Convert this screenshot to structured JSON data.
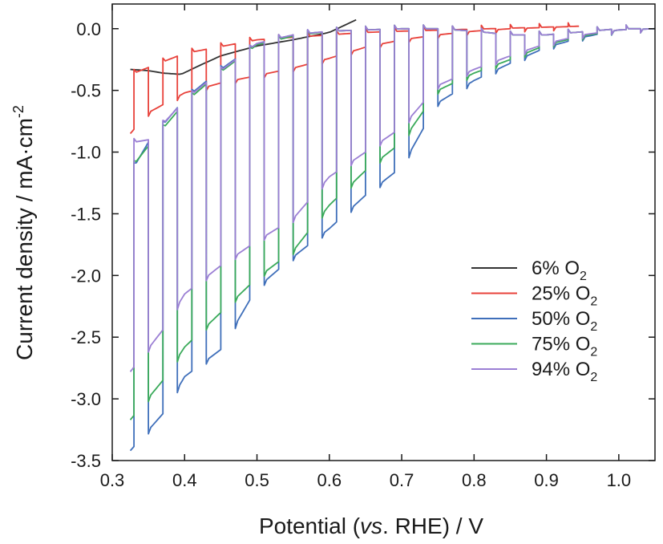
{
  "chart_data": {
    "type": "line",
    "xlabel_parts": [
      "Potential (",
      "vs",
      ". RHE) / V"
    ],
    "ylabel_main": "Current density / mA·cm",
    "ylabel_sup": "-2",
    "xlim": [
      0.3,
      1.05
    ],
    "ylim": [
      -3.5,
      0.2
    ],
    "x_ticks": [
      0.3,
      0.4,
      0.5,
      0.6,
      0.7,
      0.8,
      0.9,
      1.0
    ],
    "x_tick_labels": [
      "0.3",
      "0.4",
      "0.5",
      "0.6",
      "0.7",
      "0.8",
      "0.9",
      "1.0"
    ],
    "y_ticks": [
      0.0,
      -0.5,
      -1.0,
      -1.5,
      -2.0,
      -2.5,
      -3.0,
      -3.5
    ],
    "y_tick_labels": [
      "0.0",
      "-0.5",
      "-1.0",
      "-1.5",
      "-2.0",
      "-2.5",
      "-3.0",
      "-3.5"
    ],
    "grid": false,
    "legend_position": "bottom-right",
    "chopped": {
      "start": 0.33,
      "period": 0.04,
      "on_fraction": 0.5,
      "end": 1.05
    },
    "series": [
      {
        "name": "6% O2",
        "label": "6%",
        "label_suffix": "O",
        "label_sub": "2",
        "color": "#333333",
        "x_range": [
          0.325,
          0.64
        ],
        "smooth": [
          [
            0.325,
            -0.33
          ],
          [
            0.35,
            -0.34
          ],
          [
            0.37,
            -0.36
          ],
          [
            0.395,
            -0.37
          ],
          [
            0.42,
            -0.3
          ],
          [
            0.45,
            -0.22
          ],
          [
            0.5,
            -0.14
          ],
          [
            0.55,
            -0.09
          ],
          [
            0.6,
            -0.03
          ],
          [
            0.64,
            0.08
          ]
        ]
      },
      {
        "name": "25% O2",
        "label": "25%",
        "label_suffix": "O",
        "label_sub": "2",
        "color": "#e8413a",
        "x_range": [
          0.325,
          0.945
        ],
        "dark": [
          [
            0.325,
            -0.85
          ],
          [
            0.35,
            -0.68
          ],
          [
            0.4,
            -0.52
          ],
          [
            0.45,
            -0.44
          ],
          [
            0.5,
            -0.38
          ],
          [
            0.55,
            -0.32
          ],
          [
            0.6,
            -0.24
          ],
          [
            0.65,
            -0.15
          ],
          [
            0.7,
            -0.09
          ],
          [
            0.75,
            -0.05
          ],
          [
            0.8,
            -0.02
          ],
          [
            0.85,
            0.0
          ],
          [
            0.945,
            0.02
          ]
        ],
        "light": [
          [
            0.33,
            -0.36
          ],
          [
            0.4,
            -0.2
          ],
          [
            0.5,
            -0.09
          ],
          [
            0.6,
            -0.05
          ],
          [
            0.65,
            -0.03
          ],
          [
            0.7,
            -0.02
          ],
          [
            0.945,
            0.02
          ]
        ]
      },
      {
        "name": "50% O2",
        "label": "50%",
        "label_suffix": "O",
        "label_sub": "2",
        "color": "#3f6fba",
        "x_range": [
          0.325,
          1.05
        ],
        "dark": [
          [
            0.325,
            -3.42
          ],
          [
            0.37,
            -3.12
          ],
          [
            0.4,
            -2.82
          ],
          [
            0.45,
            -2.6
          ],
          [
            0.5,
            -2.1
          ],
          [
            0.55,
            -1.85
          ],
          [
            0.6,
            -1.62
          ],
          [
            0.65,
            -1.35
          ],
          [
            0.7,
            -1.12
          ],
          [
            0.75,
            -0.6
          ],
          [
            0.8,
            -0.42
          ],
          [
            0.85,
            -0.28
          ],
          [
            0.9,
            -0.15
          ],
          [
            0.95,
            -0.07
          ],
          [
            1.0,
            -0.01
          ],
          [
            1.05,
            0.0
          ]
        ],
        "light": [
          [
            0.33,
            -1.12
          ],
          [
            0.35,
            -0.92
          ],
          [
            0.4,
            -0.57
          ],
          [
            0.45,
            -0.33
          ],
          [
            0.5,
            -0.12
          ],
          [
            0.55,
            -0.05
          ],
          [
            0.6,
            -0.02
          ],
          [
            0.7,
            0.0
          ],
          [
            0.75,
            0.0
          ],
          [
            0.8,
            -0.02
          ],
          [
            0.85,
            -0.05
          ],
          [
            0.9,
            -0.05
          ],
          [
            1.0,
            0.0
          ],
          [
            1.05,
            0.0
          ]
        ]
      },
      {
        "name": "75% O2",
        "label": "75%",
        "label_suffix": "O",
        "label_sub": "2",
        "color": "#3aaa5a",
        "x_range": [
          0.325,
          1.05
        ],
        "dark": [
          [
            0.325,
            -3.17
          ],
          [
            0.37,
            -2.85
          ],
          [
            0.4,
            -2.58
          ],
          [
            0.45,
            -2.3
          ],
          [
            0.5,
            -2.02
          ],
          [
            0.55,
            -1.8
          ],
          [
            0.6,
            -1.43
          ],
          [
            0.65,
            -1.15
          ],
          [
            0.7,
            -0.92
          ],
          [
            0.75,
            -0.5
          ],
          [
            0.8,
            -0.36
          ],
          [
            0.85,
            -0.25
          ],
          [
            0.9,
            -0.13
          ],
          [
            0.95,
            -0.06
          ],
          [
            1.0,
            -0.01
          ],
          [
            1.05,
            0.0
          ]
        ],
        "light": [
          [
            0.33,
            -1.1
          ],
          [
            0.35,
            -0.95
          ],
          [
            0.4,
            -0.6
          ],
          [
            0.45,
            -0.35
          ],
          [
            0.5,
            -0.13
          ],
          [
            0.55,
            -0.06
          ],
          [
            0.6,
            -0.02
          ],
          [
            0.7,
            0.0
          ],
          [
            0.75,
            0.0
          ],
          [
            0.8,
            -0.02
          ],
          [
            0.85,
            -0.05
          ],
          [
            0.9,
            -0.05
          ],
          [
            1.0,
            0.0
          ],
          [
            1.05,
            0.0
          ]
        ]
      },
      {
        "name": "94% O2",
        "label": "94%",
        "label_suffix": "O",
        "label_sub": "2",
        "color": "#9b7fd4",
        "x_range": [
          0.325,
          1.05
        ],
        "dark": [
          [
            0.325,
            -2.78
          ],
          [
            0.37,
            -2.44
          ],
          [
            0.4,
            -2.15
          ],
          [
            0.45,
            -1.92
          ],
          [
            0.5,
            -1.72
          ],
          [
            0.55,
            -1.54
          ],
          [
            0.6,
            -1.2
          ],
          [
            0.65,
            -1.0
          ],
          [
            0.7,
            -0.8
          ],
          [
            0.75,
            -0.46
          ],
          [
            0.8,
            -0.33
          ],
          [
            0.85,
            -0.22
          ],
          [
            0.9,
            -0.12
          ],
          [
            0.95,
            -0.05
          ],
          [
            1.0,
            -0.01
          ],
          [
            1.05,
            0.0
          ]
        ],
        "light": [
          [
            0.33,
            -0.92
          ],
          [
            0.35,
            -0.9
          ],
          [
            0.4,
            -0.58
          ],
          [
            0.45,
            -0.34
          ],
          [
            0.5,
            -0.12
          ],
          [
            0.55,
            -0.05
          ],
          [
            0.6,
            -0.02
          ],
          [
            0.7,
            0.0
          ],
          [
            0.75,
            0.0
          ],
          [
            0.8,
            -0.02
          ],
          [
            0.85,
            -0.05
          ],
          [
            0.9,
            -0.05
          ],
          [
            1.0,
            0.0
          ],
          [
            1.05,
            0.0
          ]
        ]
      }
    ]
  }
}
